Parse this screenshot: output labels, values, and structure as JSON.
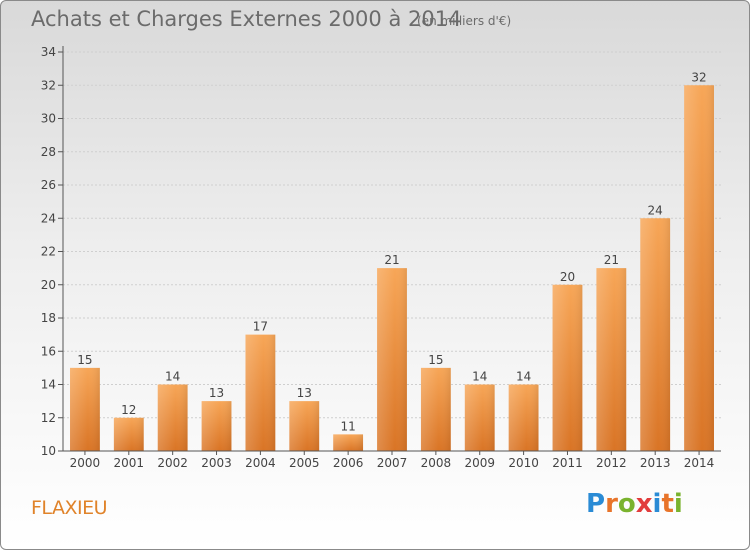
{
  "title": "Achats et Charges Externes 2000 à 2014",
  "subtitle": "(en milliers d'€)",
  "place": "FLAXIEU",
  "logo": {
    "letters": [
      "P",
      "r",
      "o",
      "x",
      "i",
      "t",
      "i"
    ],
    "colors": [
      "#2a8bd5",
      "#e8742a",
      "#7ab32e",
      "#e23c3c",
      "#2a8bd5",
      "#e8742a",
      "#7ab32e"
    ]
  },
  "colors": {
    "bar_light": "#f7a657",
    "bar_dark": "#d97425",
    "axis": "#555555",
    "grid": "#cfcfcf"
  },
  "chart_data": {
    "type": "bar",
    "categories": [
      "2000",
      "2001",
      "2002",
      "2003",
      "2004",
      "2005",
      "2006",
      "2007",
      "2008",
      "2009",
      "2010",
      "2011",
      "2012",
      "2013",
      "2014"
    ],
    "values": [
      15,
      12,
      14,
      13,
      17,
      13,
      11,
      21,
      15,
      14,
      14,
      20,
      21,
      24,
      32
    ],
    "title": "Achats et Charges Externes 2000 à 2014",
    "ylim": [
      10,
      34
    ],
    "yticks": [
      10,
      12,
      14,
      16,
      18,
      20,
      22,
      24,
      26,
      28,
      30,
      32,
      34
    ],
    "grid": true,
    "data_labels": true
  }
}
